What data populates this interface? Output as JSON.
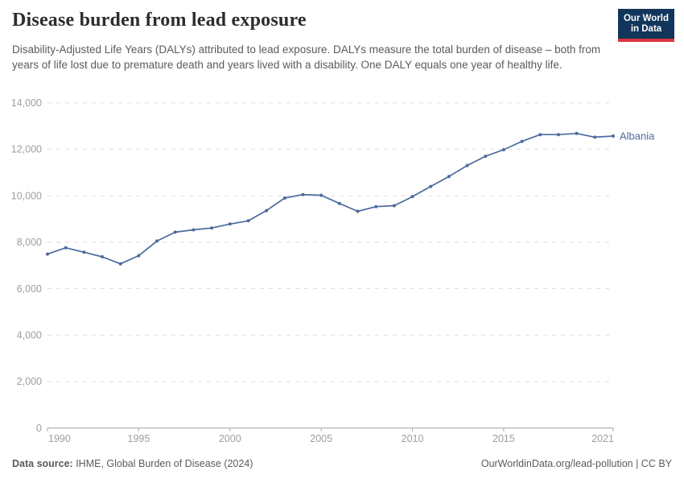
{
  "header": {
    "title": "Disease burden from lead exposure",
    "subtitle": "Disability-Adjusted Life Years (DALYs) attributed to lead exposure. DALYs measure the total burden of disease – both from years of life lost due to premature death and years lived with a disability. One DALY equals one year of healthy life.",
    "logo": {
      "line1": "Our World",
      "line2": "in Data"
    }
  },
  "chart_data": {
    "type": "line",
    "title": "Disease burden from lead exposure",
    "x": [
      1990,
      1991,
      1992,
      1993,
      1994,
      1995,
      1996,
      1997,
      1998,
      1999,
      2000,
      2001,
      2002,
      2003,
      2004,
      2005,
      2006,
      2007,
      2008,
      2009,
      2010,
      2011,
      2012,
      2013,
      2014,
      2015,
      2016,
      2017,
      2018,
      2019,
      2020,
      2021
    ],
    "series": [
      {
        "name": "Albania",
        "color": "#4c6a9c",
        "values": [
          7490,
          7760,
          7570,
          7370,
          7070,
          7420,
          8050,
          8430,
          8530,
          8610,
          8780,
          8920,
          9360,
          9900,
          10050,
          10020,
          9670,
          9330,
          9530,
          9570,
          9960,
          10400,
          10830,
          11300,
          11700,
          11980,
          12340,
          12630,
          12630,
          12680,
          12520,
          12570
        ]
      }
    ],
    "end_label": "Albania",
    "x_ticks": [
      1990,
      1995,
      2000,
      2005,
      2010,
      2015,
      2021
    ],
    "y_ticks": [
      0,
      2000,
      4000,
      6000,
      8000,
      10000,
      12000,
      14000
    ],
    "xlim": [
      1990,
      2021
    ],
    "ylim": [
      0,
      14000
    ],
    "grid": "horizontal-dashed",
    "legend_position": "end-of-line-label"
  },
  "footer": {
    "source_label": "Data source:",
    "source_value": " IHME, Global Burden of Disease (2024)",
    "credit": "OurWorldinData.org/lead-pollution | CC BY"
  },
  "colors": {
    "line": "#4c6a9c",
    "grid": "#dddddd",
    "axis": "#a1a1a1",
    "tick_label": "#9e9e9e",
    "title": "#2d2d2d",
    "subtitle": "#5b5b5b",
    "logo_bg": "#12355b",
    "logo_stripe": "#d8353f"
  }
}
